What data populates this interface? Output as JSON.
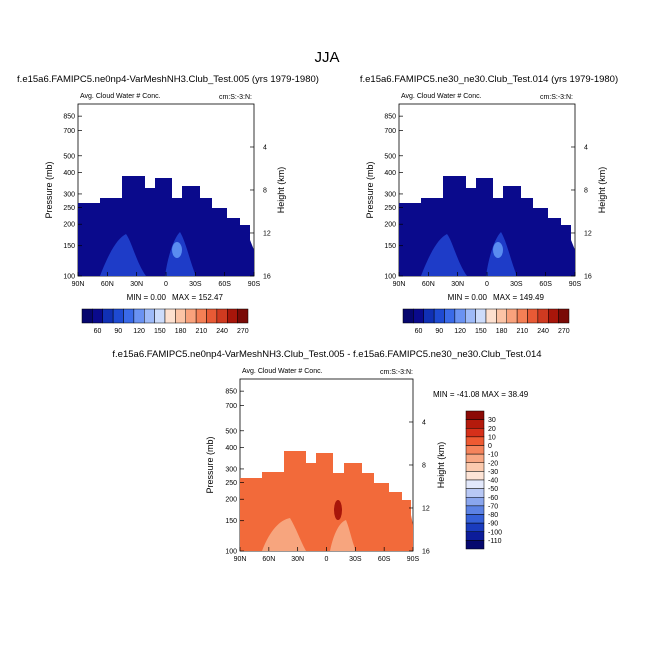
{
  "figure": {
    "title": "JJA"
  },
  "colors": {
    "dark_blue": "#0a0a8c",
    "mid_blue": "#1e3cc8",
    "light_blue": "#5a8cf0",
    "diff_fill": "#f26a3a",
    "diff_light": "#f7a57e",
    "diff_dark": "#a8160a"
  },
  "chart_data": [
    {
      "type": "contour",
      "panel": "top-left",
      "title": "f.e15a6.FAMIPC5.ne0np4-VarMeshNH3.Club_Test.005 (yrs 1979-1980)",
      "subtitle_left": "Avg. Cloud Water # Conc.",
      "subtitle_right": "cm:S:-3:N:",
      "ylabel": "Pressure (mb)",
      "ylabel_right": "Height (km)",
      "x_ticks": [
        "90N",
        "60N",
        "30N",
        "0",
        "30S",
        "60S",
        "90S"
      ],
      "y_ticks": [
        "100",
        "150",
        "200",
        "250",
        "300",
        "400",
        "500",
        "700",
        "850"
      ],
      "y_right_ticks": [
        "16",
        "12",
        "8",
        "4"
      ],
      "min_label": "MIN =   0.00",
      "max_label": "MAX = 152.47",
      "min": 0.0,
      "max": 152.47,
      "colorbar_labels": [
        "60",
        "90",
        "120",
        "150",
        "180",
        "210",
        "240",
        "270"
      ]
    },
    {
      "type": "contour",
      "panel": "top-right",
      "title": "f.e15a6.FAMIPC5.ne30_ne30.Club_Test.014 (yrs 1979-1980)",
      "subtitle_left": "Avg. Cloud Water # Conc.",
      "subtitle_right": "cm:S:-3:N:",
      "ylabel": "Pressure (mb)",
      "ylabel_right": "Height (km)",
      "x_ticks": [
        "90N",
        "60N",
        "30N",
        "0",
        "30S",
        "60S",
        "90S"
      ],
      "y_ticks": [
        "100",
        "150",
        "200",
        "250",
        "300",
        "400",
        "500",
        "700",
        "850"
      ],
      "y_right_ticks": [
        "16",
        "12",
        "8",
        "4"
      ],
      "min_label": "MIN =   0.00",
      "max_label": "MAX = 149.49",
      "min": 0.0,
      "max": 149.49,
      "colorbar_labels": [
        "60",
        "90",
        "120",
        "150",
        "180",
        "210",
        "240",
        "270"
      ]
    },
    {
      "type": "contour",
      "panel": "bottom-center",
      "title": "f.e15a6.FAMIPC5.ne0np4-VarMeshNH3.Club_Test.005 - f.e15a6.FAMIPC5.ne30_ne30.Club_Test.014",
      "subtitle_left": "Avg. Cloud Water # Conc.",
      "subtitle_right": "cm:S:-3:N:",
      "ylabel": "Pressure (mb)",
      "ylabel_right": "Height (km)",
      "x_ticks": [
        "90N",
        "60N",
        "30N",
        "0",
        "30S",
        "60S",
        "90S"
      ],
      "y_ticks": [
        "100",
        "150",
        "200",
        "250",
        "300",
        "400",
        "500",
        "700",
        "850"
      ],
      "y_right_ticks": [
        "16",
        "12",
        "8",
        "4"
      ],
      "minmax_label": "MIN = -41.08  MAX = 38.49",
      "min": -41.08,
      "max": 38.49,
      "colorbar_labels": [
        "30",
        "20",
        "10",
        "0",
        "-10",
        "-20",
        "-30",
        "-40",
        "-50",
        "-60",
        "-70",
        "-80",
        "-90",
        "-100",
        "-110"
      ]
    }
  ]
}
